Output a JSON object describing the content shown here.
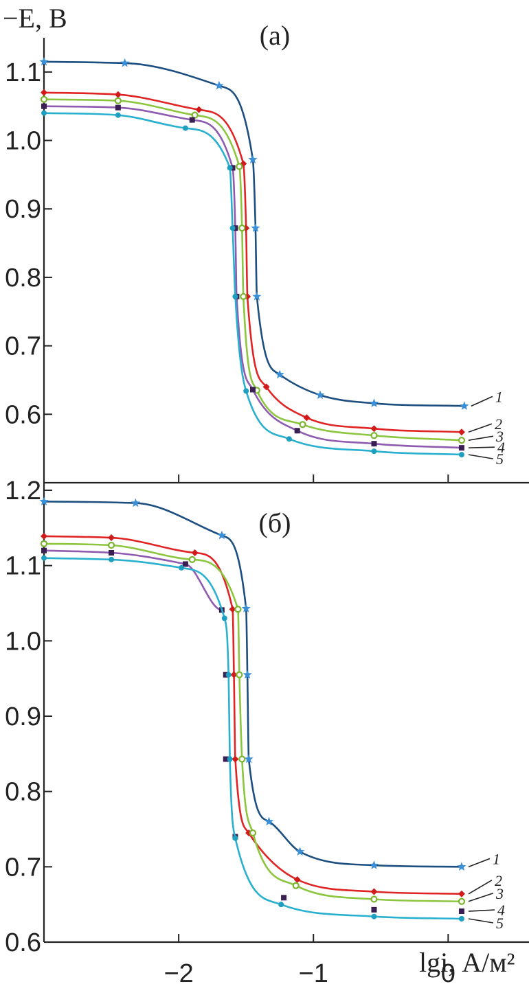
{
  "y_axis_label": "−E, В",
  "x_axis_label": "lgi, А/м²",
  "chart_data": [
    {
      "type": "line",
      "panel": "(а)",
      "ylim": [
        0.5,
        1.15
      ],
      "xlim": [
        -3.0,
        0.6
      ],
      "yticks": [
        0.6,
        0.7,
        0.8,
        0.9,
        1.0,
        1.1
      ],
      "ytick_labels": [
        "0.6",
        "0.7",
        "0.8",
        "0.9",
        "1.0",
        "1.1"
      ],
      "xticks": [
        -2,
        -1,
        0
      ],
      "series": [
        {
          "name": "1",
          "color": "#1c4e80",
          "marker_color": "#3b8fd6",
          "marker": "star",
          "points": [
            [
              -3.0,
              1.115
            ],
            [
              -2.4,
              1.113
            ],
            [
              -1.7,
              1.08
            ],
            [
              -1.45,
              0.972
            ],
            [
              -1.43,
              0.872
            ],
            [
              -1.42,
              0.772
            ],
            [
              -1.25,
              0.658
            ],
            [
              -0.95,
              0.628
            ],
            [
              -0.55,
              0.616
            ],
            [
              0.12,
              0.612
            ]
          ]
        },
        {
          "name": "2",
          "color": "#e02424",
          "marker_color": "#d11a1a",
          "marker": "diamond",
          "points": [
            [
              -3.0,
              1.07
            ],
            [
              -2.45,
              1.067
            ],
            [
              -1.85,
              1.045
            ],
            [
              -1.52,
              0.966
            ],
            [
              -1.5,
              0.872
            ],
            [
              -1.49,
              0.772
            ],
            [
              -1.35,
              0.64
            ],
            [
              -1.05,
              0.595
            ],
            [
              -0.55,
              0.579
            ],
            [
              0.1,
              0.574
            ]
          ]
        },
        {
          "name": "3",
          "color": "#8cc63f",
          "marker_color": "#7ab52f",
          "marker": "circle",
          "points": [
            [
              -3.0,
              1.06
            ],
            [
              -2.45,
              1.058
            ],
            [
              -1.88,
              1.037
            ],
            [
              -1.55,
              0.962
            ],
            [
              -1.53,
              0.872
            ],
            [
              -1.52,
              0.772
            ],
            [
              -1.42,
              0.635
            ],
            [
              -1.08,
              0.585
            ],
            [
              -0.55,
              0.569
            ],
            [
              0.1,
              0.562
            ]
          ]
        },
        {
          "name": "4",
          "color": "#8e5bb0",
          "marker_color": "#3a1f52",
          "marker": "square",
          "points": [
            [
              -3.0,
              1.05
            ],
            [
              -2.45,
              1.048
            ],
            [
              -1.9,
              1.03
            ],
            [
              -1.6,
              0.96
            ],
            [
              -1.58,
              0.872
            ],
            [
              -1.57,
              0.772
            ],
            [
              -1.45,
              0.636
            ],
            [
              -1.12,
              0.576
            ],
            [
              -0.55,
              0.557
            ],
            [
              0.1,
              0.551
            ]
          ]
        },
        {
          "name": "5",
          "color": "#2ab0cf",
          "marker_color": "#1e9fc0",
          "marker": "circle",
          "points": [
            [
              -3.0,
              1.04
            ],
            [
              -2.45,
              1.037
            ],
            [
              -1.95,
              1.018
            ],
            [
              -1.62,
              0.96
            ],
            [
              -1.6,
              0.872
            ],
            [
              -1.58,
              0.772
            ],
            [
              -1.5,
              0.634
            ],
            [
              -1.18,
              0.564
            ],
            [
              -0.55,
              0.546
            ],
            [
              0.1,
              0.541
            ]
          ]
        }
      ]
    },
    {
      "type": "line",
      "panel": "(б)",
      "ylim": [
        0.6,
        1.21
      ],
      "xlim": [
        -3.0,
        0.6
      ],
      "yticks": [
        0.6,
        0.7,
        0.8,
        0.9,
        1.0,
        1.1,
        1.2
      ],
      "ytick_labels": [
        "0.6",
        "0.7",
        "0.8",
        "0.9",
        "1.0",
        "1.1",
        "1.2"
      ],
      "xticks": [
        -2,
        -1,
        0
      ],
      "xtick_labels": [
        "−2",
        "−1",
        "0"
      ],
      "series": [
        {
          "name": "1",
          "color": "#1c4e80",
          "marker_color": "#3b8fd6",
          "marker": "star",
          "points": [
            [
              -3.0,
              1.185
            ],
            [
              -2.32,
              1.183
            ],
            [
              -1.68,
              1.14
            ],
            [
              -1.5,
              1.043
            ],
            [
              -1.49,
              0.955
            ],
            [
              -1.48,
              0.843
            ],
            [
              -1.33,
              0.76
            ],
            [
              -1.1,
              0.72
            ],
            [
              -0.55,
              0.702
            ],
            [
              0.1,
              0.7
            ]
          ]
        },
        {
          "name": "2",
          "color": "#e02424",
          "marker_color": "#d11a1a",
          "marker": "diamond",
          "points": [
            [
              -3.0,
              1.139
            ],
            [
              -2.5,
              1.137
            ],
            [
              -1.88,
              1.117
            ],
            [
              -1.6,
              1.042
            ],
            [
              -1.59,
              0.955
            ],
            [
              -1.58,
              0.843
            ],
            [
              -1.48,
              0.745
            ],
            [
              -1.12,
              0.683
            ],
            [
              -0.55,
              0.667
            ],
            [
              0.1,
              0.664
            ]
          ]
        },
        {
          "name": "3",
          "color": "#8cc63f",
          "marker_color": "#7ab52f",
          "marker": "circle",
          "points": [
            [
              -3.0,
              1.129
            ],
            [
              -2.5,
              1.127
            ],
            [
              -1.9,
              1.108
            ],
            [
              -1.56,
              1.042
            ],
            [
              -1.55,
              0.955
            ],
            [
              -1.53,
              0.843
            ],
            [
              -1.45,
              0.745
            ],
            [
              -1.13,
              0.675
            ],
            [
              -0.55,
              0.657
            ],
            [
              0.1,
              0.654
            ]
          ]
        },
        {
          "name": "4",
          "color": "#8e5bb0",
          "marker_color": "#3a1f52",
          "marker": "square",
          "points": [
            [
              -3.0,
              1.12
            ],
            [
              -2.5,
              1.117
            ],
            [
              -1.95,
              1.102
            ],
            [
              -1.68,
              1.041
            ],
            [
              -1.65,
              0.955
            ],
            [
              -1.65,
              0.843
            ],
            [
              -1.58,
              0.74
            ],
            [
              -1.22,
              0.659
            ],
            [
              -0.55,
              0.643
            ],
            [
              0.1,
              0.641
            ]
          ]
        },
        {
          "name": "5",
          "color": "#2ab0cf",
          "marker_color": "#1e9fc0",
          "marker": "circle",
          "points": [
            [
              -3.0,
              1.11
            ],
            [
              -2.5,
              1.108
            ],
            [
              -1.98,
              1.097
            ],
            [
              -1.66,
              1.03
            ],
            [
              -1.63,
              0.955
            ],
            [
              -1.62,
              0.843
            ],
            [
              -1.58,
              0.738
            ],
            [
              -1.24,
              0.65
            ],
            [
              -0.55,
              0.634
            ],
            [
              0.1,
              0.631
            ]
          ]
        }
      ]
    }
  ]
}
